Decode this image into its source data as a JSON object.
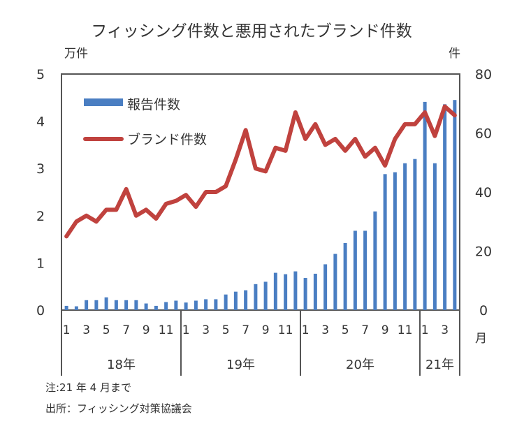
{
  "chart_data": {
    "type": "bar+line",
    "title": "フィッシング件数と悪用されたブランド件数",
    "left_unit": "万件",
    "right_unit": "件",
    "x_unit": "月",
    "ylim_left": [
      0,
      5
    ],
    "ylim_right": [
      0,
      80
    ],
    "left_ticks": [
      "0",
      "1",
      "2",
      "3",
      "4",
      "5"
    ],
    "right_ticks": [
      "0",
      "20",
      "40",
      "60",
      "80"
    ],
    "years": [
      {
        "label": "18年",
        "months": 12
      },
      {
        "label": "19年",
        "months": 12
      },
      {
        "label": "20年",
        "months": 12
      },
      {
        "label": "21年",
        "months": 4
      }
    ],
    "month_tick_labels": [
      "1",
      "",
      "3",
      "",
      "5",
      "",
      "7",
      "",
      "9",
      "",
      "11",
      "",
      "1",
      "",
      "3",
      "",
      "5",
      "",
      "7",
      "",
      "9",
      "",
      "11",
      "",
      "1",
      "",
      "3",
      "",
      "5",
      "",
      "7",
      "",
      "9",
      "",
      "11",
      "",
      "1",
      "",
      "3",
      ""
    ],
    "legend": {
      "placement": "top-left"
    },
    "series": [
      {
        "name": "報告件数",
        "type": "bar",
        "axis": "left",
        "color": "#4a7ec2",
        "values": [
          0.09,
          0.08,
          0.21,
          0.21,
          0.27,
          0.21,
          0.21,
          0.21,
          0.14,
          0.09,
          0.17,
          0.2,
          0.16,
          0.2,
          0.23,
          0.23,
          0.33,
          0.39,
          0.42,
          0.55,
          0.6,
          0.79,
          0.76,
          0.82,
          0.68,
          0.77,
          0.97,
          1.19,
          1.42,
          1.68,
          1.68,
          2.09,
          2.88,
          2.92,
          3.11,
          3.2,
          4.41,
          3.11,
          4.36,
          4.45
        ]
      },
      {
        "name": "ブランド件数",
        "type": "line",
        "axis": "right",
        "color": "#c0423e",
        "values": [
          25,
          30,
          32,
          30,
          34,
          34,
          41,
          32,
          34,
          31,
          36,
          37,
          39,
          35,
          40,
          40,
          42,
          51,
          61,
          48,
          47,
          55,
          54,
          67,
          58,
          63,
          56,
          58,
          54,
          58,
          52,
          55,
          49,
          58,
          63,
          63,
          67,
          59,
          69,
          66
        ]
      }
    ]
  },
  "notes": {
    "note1": "注:21 年 4 月まで",
    "note2": "出所：フィッシング対策協議会"
  }
}
